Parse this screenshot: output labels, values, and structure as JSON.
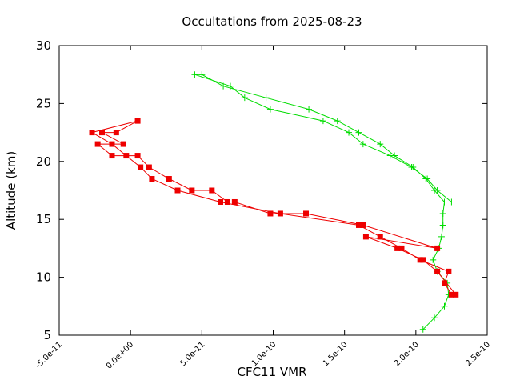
{
  "chart_data": {
    "type": "line",
    "title": "Occultations from 2025-08-23",
    "xlabel": "CFC11 VMR",
    "ylabel": "Altitude (km)",
    "xlim": [
      -5e-11,
      2.5e-10
    ],
    "ylim": [
      5,
      30
    ],
    "grid": false,
    "legend": "none",
    "xticks": [
      {
        "value": -5e-11,
        "label": "-5.0e-11"
      },
      {
        "value": 0,
        "label": "0.0e+00"
      },
      {
        "value": 5e-11,
        "label": "5.0e-11"
      },
      {
        "value": 1e-10,
        "label": "1.0e-10"
      },
      {
        "value": 1.5e-10,
        "label": "1.5e-10"
      },
      {
        "value": 2e-10,
        "label": "2.0e-10"
      },
      {
        "value": 2.5e-10,
        "label": "2.5e-10"
      }
    ],
    "yticks": [
      {
        "value": 5,
        "label": "5"
      },
      {
        "value": 10,
        "label": "10"
      },
      {
        "value": 15,
        "label": "15"
      },
      {
        "value": 20,
        "label": "20"
      },
      {
        "value": 25,
        "label": "25"
      },
      {
        "value": 30,
        "label": "30"
      }
    ],
    "series": [
      {
        "color": "#00dd00",
        "marker": "plus",
        "points": [
          [
            2.05e-10,
            5.5
          ],
          [
            2.13e-10,
            6.5
          ],
          [
            2.2e-10,
            7.5
          ],
          [
            2.23e-10,
            8.5
          ],
          [
            2.22e-10,
            9.5
          ],
          [
            2.15e-10,
            10.5
          ],
          [
            2.12e-10,
            11.5
          ],
          [
            2.16e-10,
            12.5
          ],
          [
            2.18e-10,
            13.5
          ],
          [
            2.19e-10,
            14.5
          ],
          [
            2.19e-10,
            15.5
          ],
          [
            2.2e-10,
            16.5
          ],
          [
            2.13e-10,
            17.5
          ],
          [
            2.07e-10,
            18.5
          ],
          [
            1.98e-10,
            19.5
          ],
          [
            1.85e-10,
            20.5
          ],
          [
            1.75e-10,
            21.5
          ],
          [
            1.6e-10,
            22.5
          ],
          [
            1.45e-10,
            23.5
          ],
          [
            1.25e-10,
            24.5
          ],
          [
            9.5e-11,
            25.5
          ],
          [
            6.5e-11,
            26.5
          ],
          [
            5e-11,
            27.5
          ],
          [
            4.5e-11,
            27.5
          ],
          [
            7e-11,
            26.5
          ],
          [
            8e-11,
            25.5
          ],
          [
            9.8e-11,
            24.5
          ],
          [
            1.35e-10,
            23.5
          ],
          [
            1.53e-10,
            22.5
          ],
          [
            1.63e-10,
            21.5
          ],
          [
            1.82e-10,
            20.5
          ],
          [
            1.97e-10,
            19.5
          ],
          [
            2.08e-10,
            18.5
          ],
          [
            2.15e-10,
            17.5
          ],
          [
            2.25e-10,
            16.5
          ]
        ]
      },
      {
        "color": "#ee0000",
        "marker": "square",
        "points": [
          [
            2.25e-10,
            8.5
          ],
          [
            2.2e-10,
            9.5
          ],
          [
            2.23e-10,
            10.5
          ],
          [
            2.03e-10,
            11.5
          ],
          [
            1.9e-10,
            12.5
          ],
          [
            1.75e-10,
            13.5
          ],
          [
            1.6e-10,
            14.5
          ],
          [
            1.05e-10,
            15.5
          ],
          [
            6.3e-11,
            16.5
          ],
          [
            3.3e-11,
            17.5
          ],
          [
            1.5e-11,
            18.5
          ],
          [
            7e-12,
            19.5
          ],
          [
            -3e-12,
            20.5
          ],
          [
            -1.3e-11,
            21.5
          ],
          [
            -2.7e-11,
            22.5
          ],
          [
            5e-12,
            23.5
          ],
          [
            -1e-11,
            22.5
          ],
          [
            -2e-11,
            22.5
          ],
          [
            -5e-12,
            21.5
          ],
          [
            -2.3e-11,
            21.5
          ],
          [
            -1.3e-11,
            20.5
          ],
          [
            5e-12,
            20.5
          ],
          [
            1.3e-11,
            19.5
          ],
          [
            2.7e-11,
            18.5
          ],
          [
            4.3e-11,
            17.5
          ],
          [
            5.7e-11,
            17.5
          ],
          [
            6.8e-11,
            16.5
          ],
          [
            7.3e-11,
            16.5
          ],
          [
            9.8e-11,
            15.5
          ],
          [
            1.23e-10,
            15.5
          ],
          [
            1.63e-10,
            14.5
          ],
          [
            2.15e-10,
            12.5
          ],
          [
            1.65e-10,
            13.5
          ],
          [
            1.87e-10,
            12.5
          ],
          [
            2.05e-10,
            11.5
          ],
          [
            2.15e-10,
            10.5
          ],
          [
            2.28e-10,
            8.5
          ]
        ]
      }
    ]
  }
}
